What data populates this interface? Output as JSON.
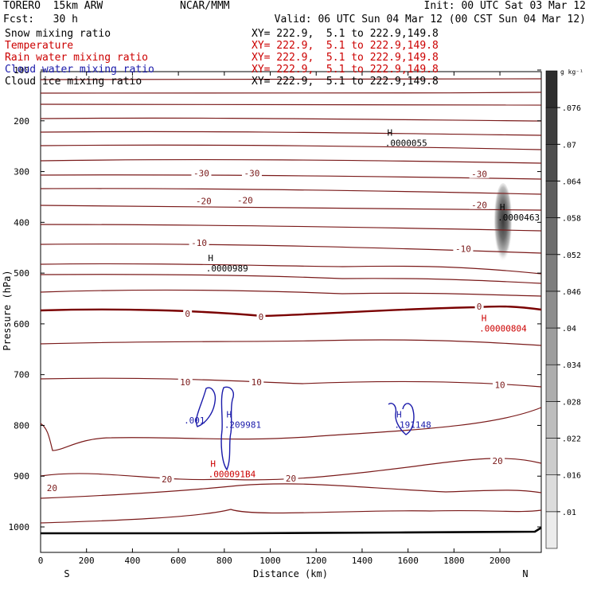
{
  "header": {
    "model": "TORERO  15km ARW",
    "center": "NCAR/MMM",
    "init": "Init: 00 UTC Sat 03 Mar 12",
    "fcst": "Fcst:   30 h",
    "valid": "Valid: 06 UTC Sun 04 Mar 12 (00 CST Sun 04 Mar 12)"
  },
  "fields": [
    {
      "label": "Snow mixing ratio",
      "color": "#000000",
      "xy": "XY= 222.9,  5.1 to 222.9,149.8"
    },
    {
      "label": "Temperature",
      "color": "#cc0000",
      "xy": "XY= 222.9,  5.1 to 222.9,149.8"
    },
    {
      "label": "Rain water mixing ratio",
      "color": "#cc0000",
      "xy": "XY= 222.9,  5.1 to 222.9,149.8"
    },
    {
      "label": "Cloud water mixing ratio",
      "color": "#1a1aaa",
      "xy": "XY= 222.9,  5.1 to 222.9,149.8"
    },
    {
      "label": "Cloud ice mixing ratio",
      "color": "#000000",
      "xy": "XY= 222.9,  5.1 to 222.9,149.8"
    }
  ],
  "colors": {
    "temperature": "#7a1a1a",
    "freezing": "#7a0000",
    "rain": "#cc0000",
    "cloud_water": "#1a1aaa",
    "ground": "#000000"
  },
  "chart_data": {
    "type": "cross-section",
    "xlabel": "Distance (km)",
    "ylabel": "Pressure (hPa)",
    "xlim": [
      0,
      2180
    ],
    "ylim": [
      1045,
      100
    ],
    "xticks": [
      "0",
      "200",
      "400",
      "600",
      "800",
      "1000",
      "1200",
      "1400",
      "1600",
      "1800",
      "2000"
    ],
    "yticks": [
      "100",
      "200",
      "300",
      "400",
      "500",
      "600",
      "700",
      "800",
      "900",
      "1000"
    ],
    "endpoints": {
      "left": "S",
      "right": "N"
    },
    "colorbar": {
      "unit": "g kg⁻¹",
      "ticks": [
        ".01",
        ".016",
        ".022",
        ".028",
        ".034",
        ".04",
        ".046",
        ".052",
        ".058",
        ".064",
        ".07",
        ".076"
      ]
    },
    "temperature_labels": [
      {
        "text": "-30",
        "x": 700,
        "p": 303
      },
      {
        "text": "-30",
        "x": 920,
        "p": 303
      },
      {
        "text": "-30",
        "x": 1910,
        "p": 305
      },
      {
        "text": "-20",
        "x": 710,
        "p": 358
      },
      {
        "text": "-20",
        "x": 890,
        "p": 356
      },
      {
        "text": "-20",
        "x": 1910,
        "p": 366
      },
      {
        "text": "-10",
        "x": 690,
        "p": 440
      },
      {
        "text": "-10",
        "x": 1840,
        "p": 452
      },
      {
        "text": "0",
        "x": 640,
        "p": 580
      },
      {
        "text": "0",
        "x": 960,
        "p": 586
      },
      {
        "text": "0",
        "x": 1910,
        "p": 566
      },
      {
        "text": "10",
        "x": 630,
        "p": 715
      },
      {
        "text": "10",
        "x": 940,
        "p": 715
      },
      {
        "text": "10",
        "x": 2000,
        "p": 720
      },
      {
        "text": "20",
        "x": 50,
        "p": 923
      },
      {
        "text": "20",
        "x": 550,
        "p": 906
      },
      {
        "text": "20",
        "x": 1090,
        "p": 904
      },
      {
        "text": "20",
        "x": 1990,
        "p": 870
      }
    ],
    "maxima": [
      {
        "field": "snow",
        "text": ".0000055",
        "x": 1500,
        "p": 245
      },
      {
        "field": "snow",
        "text": ".0000463",
        "x": 1990,
        "p": 392
      },
      {
        "field": "snow",
        "text": ".0000989",
        "x": 720,
        "p": 492
      },
      {
        "field": "rain",
        "text": ".00000804",
        "x": 1910,
        "p": 610
      },
      {
        "field": "cloud_water",
        "text": ".209981",
        "x": 800,
        "p": 800
      },
      {
        "field": "cloud_water",
        "text": ".191148",
        "x": 1540,
        "p": 800
      },
      {
        "field": "rain",
        "text": ".000091B4",
        "x": 730,
        "p": 897
      }
    ],
    "cloud_water_labels": [
      {
        "text": ".001",
        "x": 670,
        "p": 790
      }
    ]
  }
}
